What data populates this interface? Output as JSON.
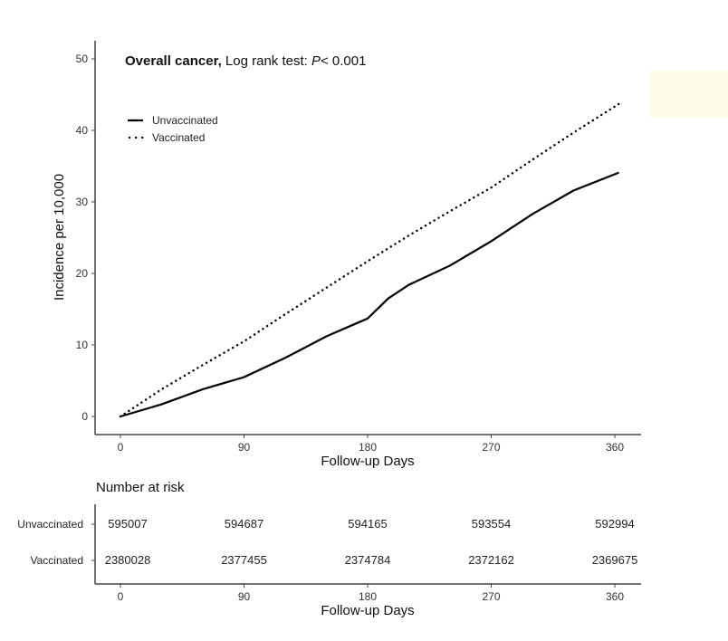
{
  "chart_data": {
    "type": "line",
    "title": {
      "bold": "Overall cancer,",
      "rest": " Log rank test: ",
      "p_symbol": "P",
      "p_value": "< 0.001"
    },
    "xlabel": "Follow-up Days",
    "ylabel": "Incidence per 10,000",
    "xlim": [
      -15,
      380
    ],
    "ylim": [
      -2,
      52
    ],
    "xticks": [
      0,
      90,
      180,
      270,
      360
    ],
    "yticks": [
      0,
      10,
      20,
      30,
      40,
      50
    ],
    "grid": false,
    "legend_position": "top-left",
    "series": [
      {
        "name": "Unvaccinated",
        "style": "solid",
        "x": [
          0,
          30,
          60,
          90,
          120,
          150,
          180,
          195,
          210,
          240,
          270,
          300,
          330,
          363
        ],
        "y": [
          0,
          1.7,
          3.8,
          5.5,
          8.2,
          11.2,
          13.7,
          16.5,
          18.4,
          21.1,
          24.5,
          28.3,
          31.6,
          34.1
        ]
      },
      {
        "name": "Vaccinated",
        "style": "dotted",
        "x": [
          0,
          30,
          60,
          90,
          120,
          150,
          180,
          210,
          240,
          270,
          300,
          330,
          363
        ],
        "y": [
          0,
          3.8,
          7.2,
          10.5,
          14.3,
          18.0,
          21.7,
          25.3,
          28.7,
          32.0,
          35.9,
          39.7,
          43.7
        ]
      }
    ],
    "risk_table": {
      "title": "Number at risk",
      "xlabel": "Follow-up Days",
      "xticks": [
        0,
        90,
        180,
        270,
        360
      ],
      "rows": [
        {
          "label": "Unvaccinated",
          "values": [
            "595007",
            "594687",
            "594165",
            "593554",
            "592994"
          ]
        },
        {
          "label": "Vaccinated",
          "values": [
            "2380028",
            "2377455",
            "2374784",
            "2372162",
            "2369675"
          ]
        }
      ]
    }
  }
}
